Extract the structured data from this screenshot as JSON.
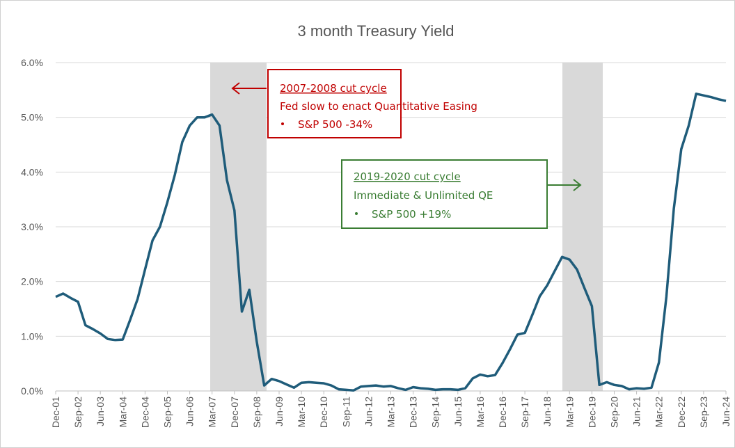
{
  "chart_data": {
    "type": "line",
    "title": "3 month Treasury Yield",
    "categories": [
      "Dec-01",
      null,
      null,
      "Sep-02",
      null,
      null,
      "Jun-03",
      null,
      null,
      "Mar-04",
      null,
      null,
      "Dec-04",
      null,
      null,
      "Sep-05",
      null,
      null,
      "Jun-06",
      null,
      null,
      "Mar-07",
      null,
      null,
      "Dec-07",
      null,
      null,
      "Sep-08",
      null,
      null,
      "Jun-09",
      null,
      null,
      "Mar-10",
      null,
      null,
      "Dec-10",
      null,
      null,
      "Sep-11",
      null,
      null,
      "Jun-12",
      null,
      null,
      "Mar-13",
      null,
      null,
      "Dec-13",
      null,
      null,
      "Sep-14",
      null,
      null,
      "Jun-15",
      null,
      null,
      "Mar-16",
      null,
      null,
      "Dec-16",
      null,
      null,
      "Sep-17",
      null,
      null,
      "Jun-18",
      null,
      null,
      "Mar-19",
      null,
      null,
      "Dec-19",
      null,
      null,
      "Sep-20",
      null,
      null,
      "Jun-21",
      null,
      null,
      "Mar-22",
      null,
      null,
      "Dec-22",
      null,
      null,
      "Sep-23",
      null,
      null,
      "Jun-24"
    ],
    "series": [
      {
        "name": "3 month Treasury Yield",
        "color": "#1f5c7a",
        "values": [
          1.72,
          1.78,
          1.7,
          1.63,
          1.2,
          1.13,
          1.05,
          0.95,
          0.93,
          0.94,
          1.3,
          1.68,
          2.22,
          2.75,
          3.0,
          3.45,
          3.95,
          4.55,
          4.85,
          5.0,
          5.0,
          5.05,
          4.85,
          3.85,
          3.3,
          1.45,
          1.85,
          0.9,
          0.1,
          0.22,
          0.18,
          0.12,
          0.06,
          0.15,
          0.16,
          0.15,
          0.14,
          0.1,
          0.03,
          0.02,
          0.01,
          0.08,
          0.09,
          0.1,
          0.08,
          0.09,
          0.05,
          0.02,
          0.07,
          0.05,
          0.04,
          0.02,
          0.03,
          0.03,
          0.02,
          0.05,
          0.23,
          0.3,
          0.27,
          0.29,
          0.51,
          0.76,
          1.03,
          1.06,
          1.39,
          1.73,
          1.93,
          2.19,
          2.45,
          2.4,
          2.22,
          1.88,
          1.55,
          0.11,
          0.16,
          0.11,
          0.09,
          0.03,
          0.05,
          0.04,
          0.06,
          0.52,
          1.72,
          3.33,
          4.42,
          4.85,
          5.43,
          5.4,
          5.37,
          5.33,
          5.3
        ]
      }
    ],
    "ylim": [
      0,
      6
    ],
    "yticks": [
      {
        "value": 0,
        "label": "0.0%"
      },
      {
        "value": 1,
        "label": "1.0%"
      },
      {
        "value": 2,
        "label": "2.0%"
      },
      {
        "value": 3,
        "label": "3.0%"
      },
      {
        "value": 4,
        "label": "4.0%"
      },
      {
        "value": 5,
        "label": "5.0%"
      },
      {
        "value": 6,
        "label": "6.0%"
      }
    ],
    "grid": true,
    "annotations": [
      {
        "title": "2007-2008 cut cycle",
        "text": "Fed slow to enact Quantitative Easing",
        "bullet": "S&P 500 -34%",
        "color": "#c00000"
      },
      {
        "title": "2019-2020 cut cycle",
        "text": "Immediate & Unlimited QE",
        "bullet": "S&P 500 +19%",
        "color": "#3a7d33"
      }
    ]
  }
}
